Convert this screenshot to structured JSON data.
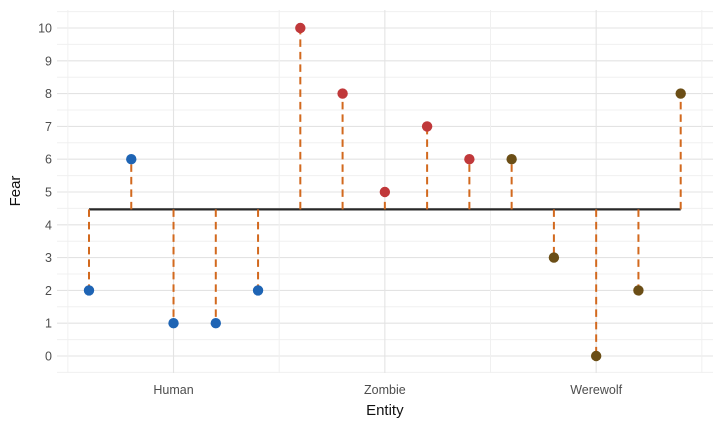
{
  "chart_data": {
    "type": "lollipop",
    "title": "",
    "xlabel": "Entity",
    "ylabel": "Fear",
    "categories": [
      "Human",
      "Zombie",
      "Werewolf"
    ],
    "series": [
      {
        "name": "Human",
        "color": "#1e64b4",
        "values": [
          2,
          6,
          1,
          1,
          2
        ]
      },
      {
        "name": "Zombie",
        "color": "#c0383a",
        "values": [
          10,
          8,
          5,
          7,
          6
        ]
      },
      {
        "name": "Werewolf",
        "color": "#6b4e16",
        "values": [
          6,
          3,
          0,
          2,
          8
        ]
      }
    ],
    "points": [
      {
        "entity": "Human",
        "fear": 2
      },
      {
        "entity": "Human",
        "fear": 6
      },
      {
        "entity": "Human",
        "fear": 1
      },
      {
        "entity": "Human",
        "fear": 1
      },
      {
        "entity": "Human",
        "fear": 2
      },
      {
        "entity": "Zombie",
        "fear": 10
      },
      {
        "entity": "Zombie",
        "fear": 8
      },
      {
        "entity": "Zombie",
        "fear": 5
      },
      {
        "entity": "Zombie",
        "fear": 7
      },
      {
        "entity": "Zombie",
        "fear": 6
      },
      {
        "entity": "Werewolf",
        "fear": 6
      },
      {
        "entity": "Werewolf",
        "fear": 3
      },
      {
        "entity": "Werewolf",
        "fear": 0
      },
      {
        "entity": "Werewolf",
        "fear": 2
      },
      {
        "entity": "Werewolf",
        "fear": 8
      }
    ],
    "baseline_value": 4.47,
    "ylim": [
      0,
      10
    ],
    "y_ticks": [
      0,
      1,
      2,
      3,
      4,
      5,
      6,
      7,
      8,
      9,
      10
    ],
    "grid": true,
    "legend": "none",
    "colors": {
      "stem": "#d2691e",
      "baseline": "#282828",
      "grid_major": "#e3e3e3",
      "grid_minor": "#f0f0f0",
      "tick_text": "#4d4d4d",
      "title_text": "#111111"
    }
  }
}
